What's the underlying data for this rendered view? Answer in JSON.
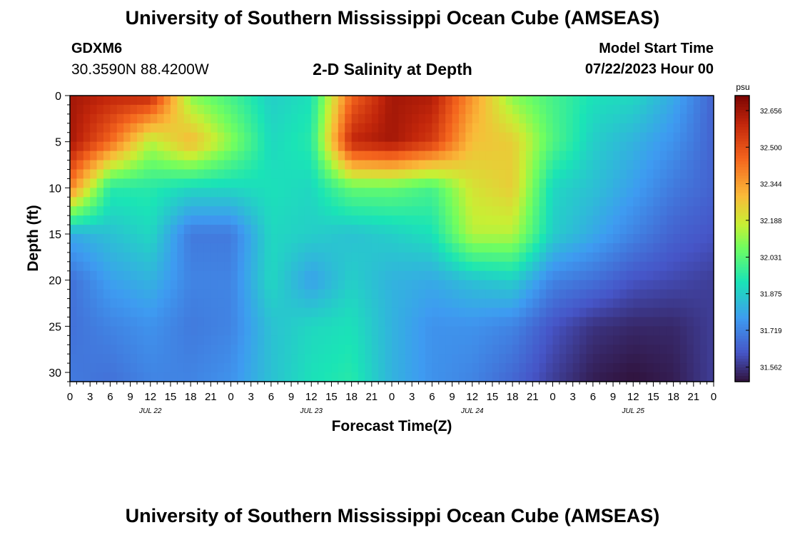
{
  "header": {
    "title": "University of Southern Mississippi Ocean Cube (AMSEAS)",
    "station": "GDXM6",
    "coords": "30.3590N  88.4200W",
    "subtitle": "2-D Salinity at Depth",
    "model_start_label": "Model Start Time",
    "model_start_value": "07/22/2023 Hour 00"
  },
  "footer": {
    "title": "University of Southern Mississippi Ocean Cube (AMSEAS)"
  },
  "chart_data": {
    "type": "heatmap",
    "xlabel": "Forecast Time(Z)",
    "ylabel": "Depth (ft)",
    "units": "psu",
    "x_range_hours": [
      0,
      96
    ],
    "ylim": [
      0,
      31
    ],
    "y_ticks": [
      0,
      5,
      10,
      15,
      20,
      25,
      30
    ],
    "x_tick_labels": [
      "0",
      "3",
      "6",
      "9",
      "12",
      "15",
      "18",
      "21",
      "0",
      "3",
      "6",
      "9",
      "12",
      "15",
      "18",
      "21",
      "0",
      "3",
      "6",
      "9",
      "12",
      "15",
      "18",
      "21",
      "0",
      "3",
      "6",
      "9",
      "12",
      "15",
      "18",
      "21",
      "0"
    ],
    "day_labels": [
      {
        "text": "JUL 22",
        "hour": 12
      },
      {
        "text": "JUL 23",
        "hour": 36
      },
      {
        "text": "JUL 24",
        "hour": 60
      },
      {
        "text": "JUL 25",
        "hour": 84
      }
    ],
    "colorbar_ticks": [
      "32.656",
      "32.500",
      "32.344",
      "32.188",
      "32.031",
      "31.875",
      "31.719",
      "31.562"
    ],
    "vmin": 31.5,
    "vmax": 32.72,
    "time_hours": [
      0,
      6,
      12,
      18,
      24,
      30,
      36,
      42,
      48,
      54,
      60,
      66,
      72,
      78,
      84,
      90,
      96
    ],
    "depths_ft": [
      0,
      5,
      10,
      15,
      20,
      25,
      31
    ],
    "salinity": [
      [
        32.65,
        32.6,
        32.6,
        32.1,
        32.0,
        31.88,
        31.92,
        32.45,
        32.65,
        32.63,
        32.36,
        32.1,
        32.0,
        31.92,
        31.9,
        31.8,
        31.65
      ],
      [
        32.65,
        32.45,
        32.15,
        32.3,
        32.1,
        31.9,
        31.95,
        32.6,
        32.65,
        32.55,
        32.28,
        32.25,
        32.02,
        31.88,
        31.82,
        31.75,
        31.65
      ],
      [
        32.4,
        31.95,
        31.95,
        31.9,
        31.9,
        31.92,
        31.9,
        32.05,
        32.05,
        32.0,
        32.2,
        32.25,
        31.9,
        31.85,
        31.78,
        31.7,
        31.65
      ],
      [
        31.8,
        31.85,
        31.9,
        31.7,
        31.7,
        31.9,
        31.88,
        31.85,
        31.88,
        31.92,
        32.15,
        32.15,
        31.88,
        31.8,
        31.72,
        31.65,
        31.62
      ],
      [
        31.68,
        31.78,
        31.82,
        31.72,
        31.72,
        31.9,
        31.78,
        31.88,
        31.82,
        31.8,
        31.85,
        31.88,
        31.72,
        31.68,
        31.62,
        31.6,
        31.58
      ],
      [
        31.68,
        31.72,
        31.75,
        31.7,
        31.72,
        31.85,
        31.9,
        31.92,
        31.82,
        31.75,
        31.75,
        31.72,
        31.62,
        31.56,
        31.54,
        31.54,
        31.58
      ],
      [
        31.7,
        31.68,
        31.72,
        31.72,
        31.75,
        31.85,
        31.92,
        31.95,
        31.82,
        31.75,
        31.72,
        31.66,
        31.58,
        31.52,
        31.5,
        31.52,
        31.58
      ]
    ]
  }
}
